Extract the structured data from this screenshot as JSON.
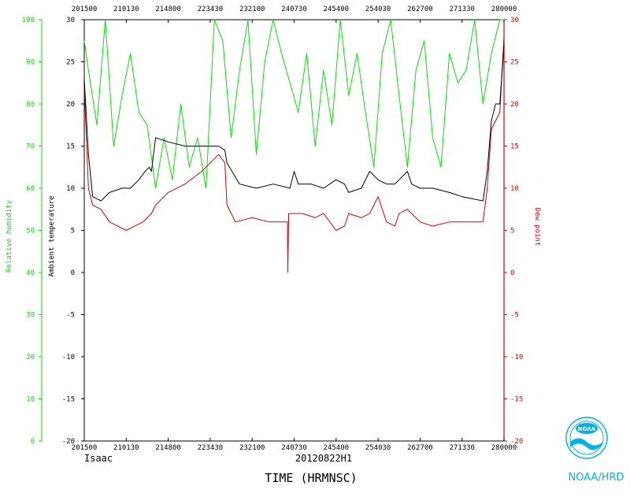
{
  "chart_data": {
    "type": "line",
    "xlabel": "TIME (HRMNSC)",
    "storm_name": "Isaac",
    "mission": "20120822H1",
    "x_ticks": [
      "201500",
      "210130",
      "214800",
      "223430",
      "232100",
      "240730",
      "245400",
      "254030",
      "262700",
      "271330",
      "280000"
    ],
    "temp_axis": {
      "label": "Ambient temperature",
      "ylim": [
        -20,
        30
      ],
      "ticks": [
        30,
        25,
        20,
        15,
        10,
        5,
        0,
        -5,
        -10,
        -15,
        -20
      ]
    },
    "dew_axis": {
      "label": "Dew point",
      "ylim": [
        -20,
        30
      ],
      "ticks": [
        30,
        25,
        20,
        15,
        10,
        5,
        0,
        -5,
        -10,
        -15,
        -20
      ]
    },
    "rh_axis": {
      "label": "Relative humidity",
      "ylim": [
        0,
        100
      ],
      "ticks": [
        100,
        90,
        80,
        70,
        60,
        50,
        40,
        30,
        20,
        10,
        0
      ]
    },
    "series": [
      {
        "name": "Ambient temperature",
        "color": "#000000",
        "x": [
          0,
          0.01,
          0.02,
          0.04,
          0.06,
          0.09,
          0.11,
          0.13,
          0.145,
          0.155,
          0.16,
          0.17,
          0.2,
          0.24,
          0.28,
          0.32,
          0.335,
          0.34,
          0.37,
          0.41,
          0.45,
          0.49,
          0.5,
          0.51,
          0.54,
          0.57,
          0.6,
          0.62,
          0.63,
          0.66,
          0.68,
          0.7,
          0.72,
          0.74,
          0.75,
          0.77,
          0.78,
          0.8,
          0.83,
          0.87,
          0.9,
          0.95,
          0.96,
          0.97,
          0.98,
          0.99,
          1.0
        ],
        "y": [
          23,
          14,
          9,
          8.5,
          9.5,
          10,
          10,
          11,
          12,
          12.5,
          12,
          16,
          15.5,
          15,
          15,
          15,
          14.5,
          13,
          10.5,
          10,
          10.5,
          10,
          12,
          10.5,
          10.5,
          10,
          11,
          10.5,
          9.5,
          10,
          12,
          11,
          10.5,
          10.5,
          11,
          12,
          10.5,
          10,
          10,
          9.5,
          9,
          8.5,
          12,
          18,
          20,
          20,
          27
        ]
      },
      {
        "name": "Dew point",
        "color": "#dd0000",
        "x": [
          0,
          0.01,
          0.02,
          0.04,
          0.06,
          0.08,
          0.1,
          0.12,
          0.14,
          0.16,
          0.17,
          0.2,
          0.24,
          0.28,
          0.32,
          0.335,
          0.34,
          0.36,
          0.4,
          0.44,
          0.47,
          0.484,
          0.485,
          0.487,
          0.49,
          0.52,
          0.55,
          0.57,
          0.6,
          0.62,
          0.63,
          0.66,
          0.68,
          0.7,
          0.72,
          0.74,
          0.75,
          0.77,
          0.8,
          0.83,
          0.87,
          0.9,
          0.95,
          0.96,
          0.97,
          0.98,
          0.99,
          1.0
        ],
        "y": [
          22,
          10,
          8,
          7.5,
          6,
          5.5,
          5,
          5.5,
          6,
          7,
          8,
          9.5,
          10.5,
          12,
          14,
          13,
          8,
          6,
          6.5,
          6,
          6,
          6,
          0,
          7,
          7,
          7,
          6.5,
          7,
          5,
          5.5,
          7,
          6.5,
          7,
          9,
          6,
          5.5,
          7,
          7.5,
          6,
          5.5,
          6,
          6,
          6,
          10,
          17,
          18,
          19,
          28
        ]
      },
      {
        "name": "Relative humidity",
        "color": "#00e600",
        "x": [
          0,
          0.01,
          0.03,
          0.05,
          0.07,
          0.09,
          0.11,
          0.13,
          0.15,
          0.17,
          0.19,
          0.21,
          0.23,
          0.25,
          0.27,
          0.29,
          0.31,
          0.33,
          0.35,
          0.37,
          0.39,
          0.41,
          0.43,
          0.45,
          0.47,
          0.49,
          0.51,
          0.53,
          0.55,
          0.57,
          0.59,
          0.61,
          0.63,
          0.65,
          0.67,
          0.69,
          0.71,
          0.73,
          0.75,
          0.77,
          0.79,
          0.81,
          0.83,
          0.85,
          0.87,
          0.89,
          0.91,
          0.93,
          0.95,
          0.97,
          0.99,
          1.0
        ],
        "y": [
          95,
          88,
          75,
          100,
          70,
          82,
          92,
          78,
          75,
          60,
          72,
          62,
          80,
          65,
          72,
          60,
          100,
          95,
          72,
          88,
          100,
          68,
          90,
          100,
          92,
          85,
          78,
          92,
          70,
          88,
          75,
          100,
          82,
          92,
          78,
          65,
          92,
          100,
          82,
          65,
          88,
          95,
          72,
          65,
          92,
          85,
          88,
          100,
          80,
          92,
          100,
          100
        ]
      }
    ]
  },
  "branding": {
    "agency": "NOAA/HRD",
    "logo_text": "NOAA"
  },
  "colors": {
    "rh": "#00e600",
    "dew": "#dd0000",
    "temp": "#000000",
    "noaa": "#00b2e6"
  }
}
